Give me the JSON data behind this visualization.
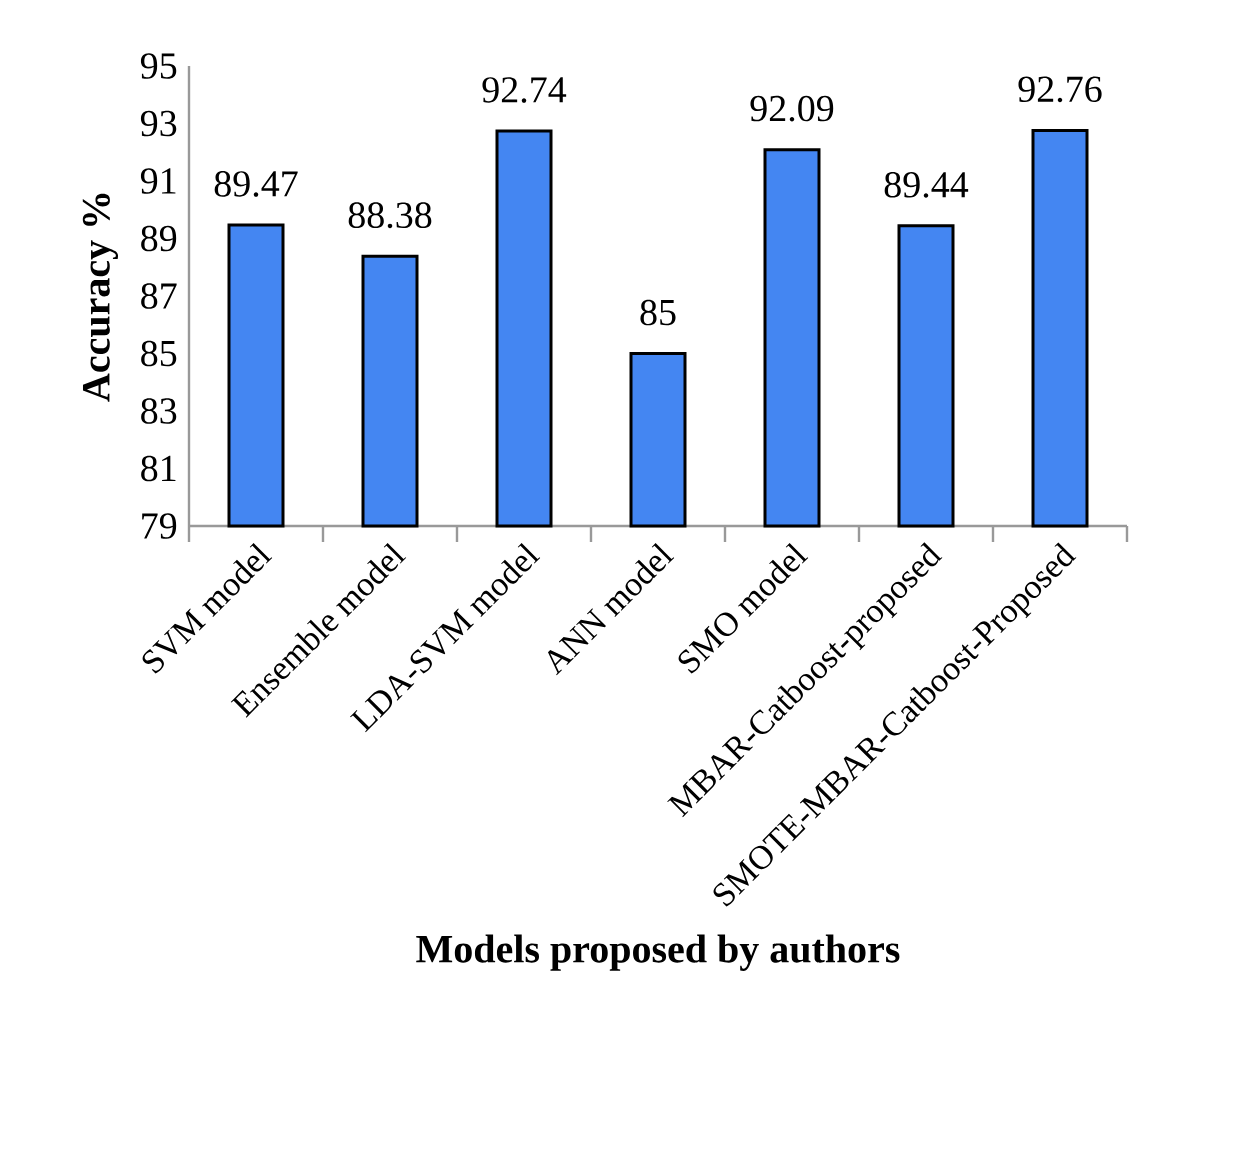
{
  "chart_data": {
    "type": "bar",
    "xlabel": "Models proposed by authors",
    "ylabel": "Accuracy %",
    "categories": [
      "SVM model",
      "Ensemble model",
      "LDA-SVM model",
      "ANN model",
      "SMO model",
      "MBAR-Catboost-proposed",
      "SMOTE-MBAR-Catboost-Proposed"
    ],
    "values": [
      89.47,
      88.38,
      92.74,
      85,
      92.09,
      89.44,
      92.76
    ],
    "color": "#4486f2",
    "ylim": [
      79,
      95
    ],
    "yticks": [
      79,
      81,
      83,
      85,
      87,
      89,
      91,
      93,
      95
    ],
    "data_labels": true
  }
}
